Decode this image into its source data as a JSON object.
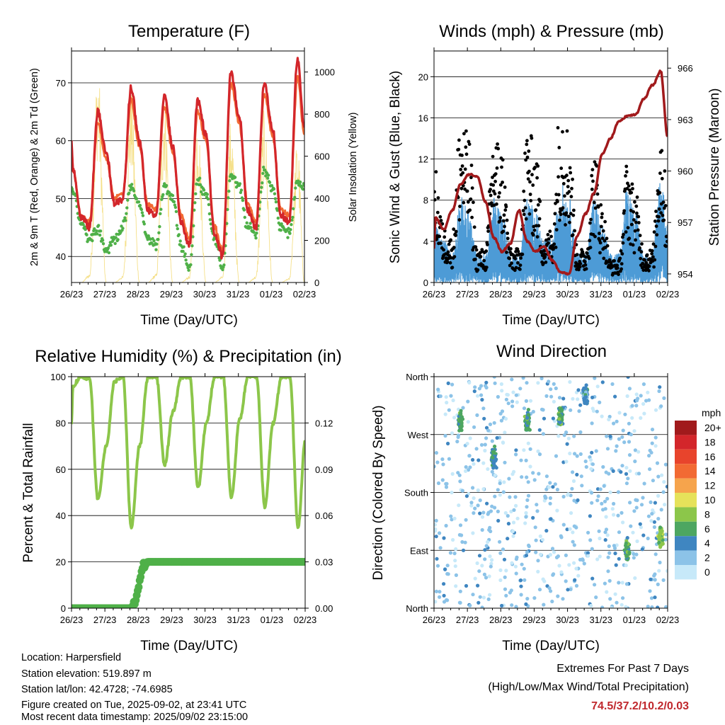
{
  "panels": {
    "temperature": {
      "title": "Temperature (F)",
      "ylabel_left": "2m & 9m T (Red, Orange) & 2m Td (Green)",
      "ylabel_right": "Solar Insolation (Yellow)",
      "left_ticks": [
        "40",
        "50",
        "60",
        "70"
      ],
      "right_ticks": [
        "0",
        "200",
        "400",
        "600",
        "800",
        "1000"
      ]
    },
    "winds": {
      "title": "Winds (mph) & Pressure (mb)",
      "ylabel_left": "Sonic Wind & Gust (Blue, Black)",
      "ylabel_right": "Station Pressure (Maroon)",
      "left_ticks": [
        "0",
        "4",
        "8",
        "12",
        "16",
        "20"
      ],
      "right_ticks": [
        "954",
        "957",
        "960",
        "963",
        "966"
      ]
    },
    "humidity": {
      "title": "Relative Humidity (%) & Precipitation (in)",
      "ylabel_left": "Percent & Total Rainfall",
      "left_ticks": [
        "0",
        "20",
        "40",
        "60",
        "80",
        "100"
      ],
      "right_ticks": [
        "0.00",
        "0.03",
        "0.06",
        "0.09",
        "0.12"
      ]
    },
    "direction": {
      "title": "Wind Direction",
      "ylabel_left": "Direction (Colored By Speed)",
      "left_ticks": [
        "North",
        "East",
        "South",
        "West",
        "North"
      ]
    }
  },
  "xlabel": "Time (Day/UTC)",
  "x_ticks": [
    "26/23",
    "27/23",
    "28/23",
    "29/23",
    "30/23",
    "31/23",
    "01/23",
    "02/23"
  ],
  "legend": {
    "title": "mph",
    "labels": [
      "20+",
      "18",
      "16",
      "14",
      "12",
      "10",
      "8",
      "6",
      "4",
      "2",
      "0"
    ],
    "colors": [
      "#a11a1c",
      "#d3262b",
      "#e8442c",
      "#f26a33",
      "#f6a44c",
      "#e6e25a",
      "#8cc64a",
      "#4da661",
      "#3f86c1",
      "#8cc3e8",
      "#c7e9f9"
    ]
  },
  "meta": {
    "location": "Location: Harpersfield",
    "elevation": "Station elevation: 519.897 m",
    "latlon": "Station lat/lon: 42.4728; -74.6985",
    "created": "Figure created on Tue, 2025-09-02, at 23:41 UTC",
    "recent": "Most recent data timestamp: 2025/09/02 23:15:00"
  },
  "extremes": {
    "title_line1": "Extremes For Past 7 Days",
    "title_line2": "(High/Low/Max Wind/Total Precipitation)",
    "values": "74.5/37.2/10.2/0.03"
  },
  "colors": {
    "temp_2m": "#d3262b",
    "temp_9m": "#f26a33",
    "dewpoint": "#4fb048",
    "solar": "#f5e08a",
    "wind": "#4d9bd6",
    "gust": "#000000",
    "pressure": "#a11a1c",
    "rh": "#8cc64a",
    "precip": "#4fb048"
  },
  "chart_data": [
    {
      "type": "line",
      "title": "Temperature (F)",
      "xlabel": "Time (Day/UTC)",
      "ylabel": "2m & 9m T (Red, Orange) & 2m Td (Green)",
      "ylabel_right": "Solar Insolation (Yellow)",
      "x": [
        "26/23",
        "27/00",
        "27/06",
        "27/12",
        "27/18",
        "28/00",
        "28/06",
        "28/12",
        "28/18",
        "29/00",
        "29/06",
        "29/12",
        "29/18",
        "30/00",
        "30/06",
        "30/12",
        "30/18",
        "31/00",
        "31/06",
        "31/12",
        "31/18",
        "01/00",
        "01/06",
        "01/12",
        "01/18",
        "02/00",
        "02/06",
        "02/12",
        "02/18",
        "02/23"
      ],
      "ylim": [
        35.5,
        75.5
      ],
      "ylim_right": [
        0,
        1100
      ],
      "series": [
        {
          "name": "2m T",
          "values": [
            60,
            55,
            47,
            45,
            65,
            58,
            49,
            50,
            69,
            60,
            48,
            47,
            68,
            59,
            46,
            42,
            67,
            61,
            44,
            40,
            72,
            64,
            48,
            45,
            70,
            62,
            47,
            46,
            74,
            62
          ]
        },
        {
          "name": "9m T",
          "values": [
            59,
            55,
            47,
            46,
            63,
            57,
            50,
            51,
            67,
            59,
            49,
            48,
            66,
            58,
            47,
            43,
            65,
            60,
            45,
            41,
            70,
            63,
            49,
            46,
            68,
            61,
            48,
            47,
            71,
            61
          ]
        },
        {
          "name": "2m Td",
          "values": [
            52,
            51,
            46,
            43,
            45,
            41,
            43,
            45,
            52,
            49,
            43,
            42,
            52,
            50,
            42,
            38,
            53,
            51,
            43,
            38,
            54,
            52,
            45,
            44,
            55,
            52,
            45,
            44,
            53,
            52
          ]
        },
        {
          "name": "Solar Insolation",
          "axis": "right",
          "values": [
            0,
            0,
            0,
            40,
            1050,
            0,
            0,
            30,
            940,
            0,
            0,
            40,
            920,
            0,
            0,
            30,
            820,
            0,
            0,
            30,
            780,
            0,
            0,
            30,
            820,
            0,
            0,
            20,
            690,
            0
          ]
        }
      ]
    },
    {
      "type": "line",
      "title": "Winds (mph) & Pressure (mb)",
      "xlabel": "Time (Day/UTC)",
      "ylabel": "Sonic Wind & Gust (Blue, Black)",
      "ylabel_right": "Station Pressure (Maroon)",
      "x": [
        "26/23",
        "27/00",
        "27/06",
        "27/12",
        "27/18",
        "28/00",
        "28/06",
        "28/12",
        "28/18",
        "29/00",
        "29/06",
        "29/12",
        "29/18",
        "30/00",
        "30/06",
        "30/12",
        "30/18",
        "31/00",
        "31/06",
        "31/12",
        "31/18",
        "01/00",
        "01/06",
        "01/12",
        "01/18",
        "02/00",
        "02/06",
        "02/12",
        "02/18",
        "02/23"
      ],
      "ylim": [
        0,
        22.5
      ],
      "ylim_right": [
        953.5,
        967
      ],
      "series": [
        {
          "name": "Sonic Wind",
          "values": [
            3,
            4,
            3,
            2,
            6,
            5,
            2,
            2,
            6,
            5,
            2,
            2,
            6,
            5,
            3,
            3,
            7,
            6,
            2,
            2,
            6,
            4,
            2,
            2,
            7,
            5,
            2,
            2,
            8,
            4
          ]
        },
        {
          "name": "Gust",
          "values": [
            8,
            10,
            5,
            4,
            15,
            13,
            3,
            3,
            14,
            12,
            3,
            3,
            14,
            12,
            4,
            5,
            17,
            14,
            3,
            3,
            12,
            7,
            2,
            2,
            11,
            8,
            3,
            3,
            15,
            7
          ]
        },
        {
          "name": "Station Pressure",
          "axis": "right",
          "values": [
            955.5,
            957.3,
            956.6,
            957.7,
            959.2,
            959.8,
            959.7,
            958.2,
            956.1,
            955.3,
            955.8,
            957.7,
            955.9,
            955.3,
            955.6,
            954.8,
            954.1,
            954.0,
            956.2,
            957.5,
            958.7,
            961.0,
            961.9,
            962.9,
            963.2,
            963.3,
            964.2,
            965.0,
            965.8,
            962.0
          ]
        }
      ]
    },
    {
      "type": "line",
      "title": "Relative Humidity (%) & Precipitation (in)",
      "xlabel": "Time (Day/UTC)",
      "ylabel": "Percent & Total Rainfall",
      "x": [
        "26/23",
        "27/00",
        "27/06",
        "27/12",
        "27/18",
        "28/00",
        "28/06",
        "28/12",
        "28/18",
        "29/00",
        "29/06",
        "29/12",
        "29/18",
        "30/00",
        "30/06",
        "30/12",
        "30/18",
        "31/00",
        "31/06",
        "31/12",
        "31/18",
        "01/00",
        "01/06",
        "01/12",
        "01/18",
        "02/00",
        "02/06",
        "02/12",
        "02/18",
        "02/23"
      ],
      "ylim": [
        0,
        100
      ],
      "ylim_right": [
        0,
        0.15
      ],
      "series": [
        {
          "name": "Relative Humidity",
          "values": [
            80,
            96,
            100,
            99,
            47,
            70,
            98,
            100,
            35,
            70,
            100,
            100,
            62,
            85,
            100,
            100,
            52,
            80,
            100,
            100,
            48,
            82,
            100,
            100,
            44,
            80,
            100,
            100,
            35,
            72
          ]
        },
        {
          "name": "Total Precipitation",
          "axis": "right",
          "values": [
            0,
            0,
            0,
            0,
            0,
            0,
            0,
            0,
            0,
            0.02,
            0.03,
            0.03,
            0.03,
            0.03,
            0.03,
            0.03,
            0.03,
            0.03,
            0.03,
            0.03,
            0.03,
            0.03,
            0.03,
            0.03,
            0.03,
            0.03,
            0.03,
            0.03,
            0.03,
            0.03
          ]
        }
      ]
    },
    {
      "type": "scatter",
      "title": "Wind Direction",
      "xlabel": "Time (Day/UTC)",
      "ylabel": "Direction (Colored By Speed)",
      "y_categories": [
        "North",
        "East",
        "South",
        "West",
        "North"
      ],
      "ylim": [
        0,
        360
      ],
      "clusters": [
        {
          "x": "27/18",
          "direction": 290,
          "speed": 6
        },
        {
          "x": "28/18",
          "direction": 235,
          "speed": 5
        },
        {
          "x": "29/18",
          "direction": 290,
          "speed": 6
        },
        {
          "x": "30/18",
          "direction": 300,
          "speed": 6
        },
        {
          "x": "31/12",
          "direction": 330,
          "speed": 4
        },
        {
          "x": "01/18",
          "direction": 90,
          "speed": 6
        },
        {
          "x": "02/18",
          "direction": 110,
          "speed": 8
        }
      ]
    }
  ]
}
